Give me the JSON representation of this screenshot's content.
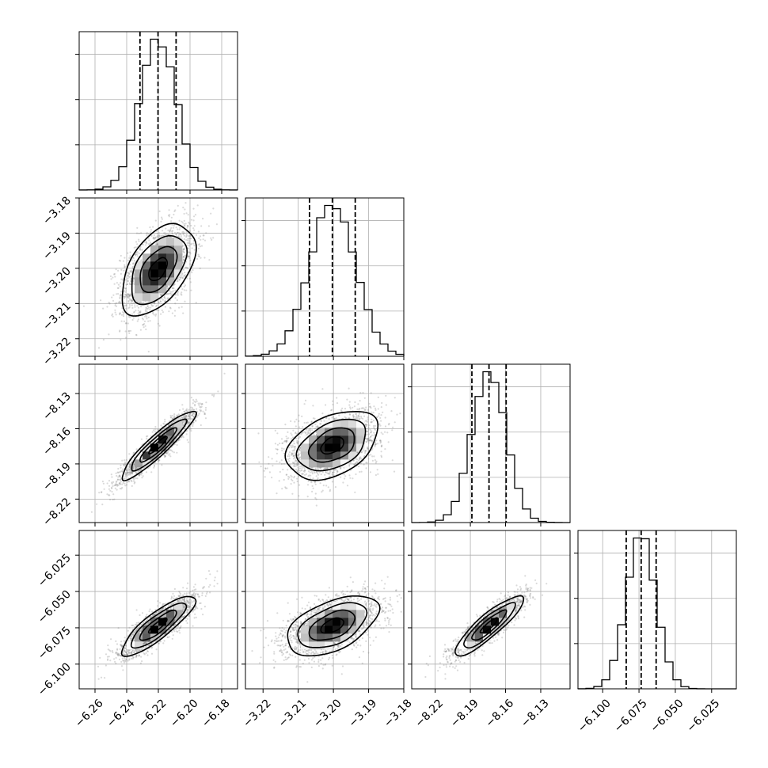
{
  "chart_data": {
    "type": "corner",
    "title": "",
    "grid": true,
    "colors": {
      "line": "#000000",
      "grid": "#b0b0b0",
      "samples": "#7a7a7a"
    },
    "params": [
      {
        "range": [
          -6.27,
          -6.17
        ],
        "ticks": [
          -6.26,
          -6.24,
          -6.22,
          -6.2,
          -6.18
        ],
        "tick_labels": [
          "−6.26",
          "−6.24",
          "−6.22",
          "−6.20",
          "−6.18"
        ],
        "mean": -6.2202,
        "std": 0.0116,
        "quantiles": [
          -6.2316,
          -6.2202,
          -6.2088
        ]
      },
      {
        "range": [
          -3.225,
          -3.18
        ],
        "ticks": [
          -3.22,
          -3.21,
          -3.2,
          -3.19,
          -3.18
        ],
        "tick_labels": [
          "−3.22",
          "−3.21",
          "−3.20",
          "−3.19",
          "−3.18"
        ],
        "mean": -3.2003,
        "std": 0.0065,
        "quantiles": [
          -3.2068,
          -3.2003,
          -3.1938
        ]
      },
      {
        "range": [
          -8.24,
          -8.105
        ],
        "ticks": [
          -8.22,
          -8.19,
          -8.16,
          -8.13
        ],
        "tick_labels": [
          "−8.22",
          "−8.19",
          "−8.16",
          "−8.13"
        ],
        "mean": -8.1741,
        "std": 0.0146,
        "quantiles": [
          -8.1887,
          -8.1741,
          -8.1595
        ]
      },
      {
        "range": [
          -6.117,
          -6.008
        ],
        "ticks": [
          -6.1,
          -6.075,
          -6.05,
          -6.025
        ],
        "tick_labels": [
          "−6.100",
          "−6.075",
          "−6.050",
          "−6.025"
        ],
        "mean": -6.0735,
        "std": 0.0103,
        "quantiles": [
          -6.0838,
          -6.0735,
          -6.0632
        ]
      }
    ],
    "correlations": [
      [
        1.0,
        0.5,
        0.92,
        0.85
      ],
      [
        0.5,
        1.0,
        0.4,
        0.5
      ],
      [
        0.92,
        0.4,
        1.0,
        0.88
      ],
      [
        0.85,
        0.5,
        0.88,
        1.0
      ]
    ]
  }
}
